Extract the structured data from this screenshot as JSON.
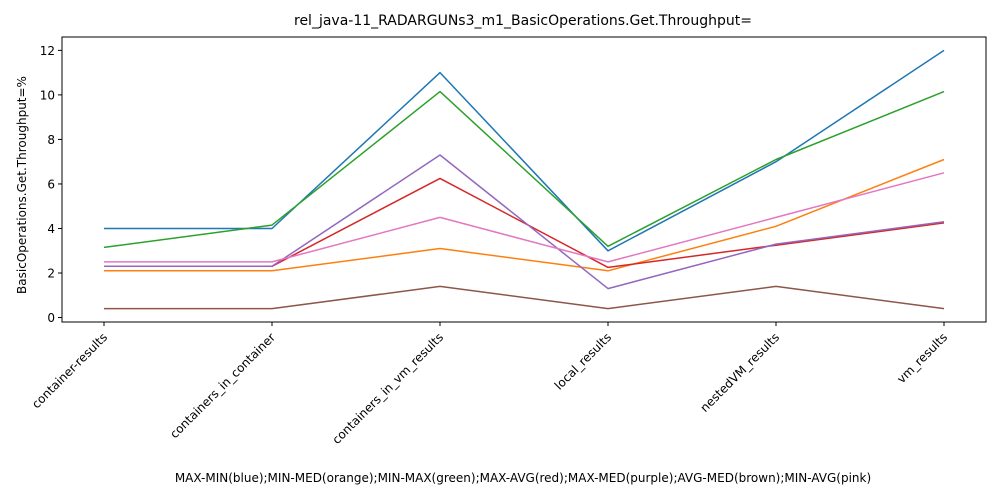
{
  "chart_data": {
    "type": "line",
    "title": "rel_java-11_RADARGUNs3_m1_BasicOperations.Get.Throughput=",
    "xlabel": "MAX-MIN(blue);MIN-MED(orange);MIN-MAX(green);MAX-AVG(red);MAX-MED(purple);AVG-MED(brown);MIN-AVG(pink)",
    "ylabel": "BasicOperations.Get.Throughput=%",
    "categories": [
      "container-results",
      "containers_in_container",
      "containers_in_vm_results",
      "local_results",
      "nestedVM_results",
      "vm_results"
    ],
    "ylim": [
      -0.2,
      12.6
    ],
    "yticks": [
      0,
      2,
      4,
      6,
      8,
      10,
      12
    ],
    "grid": false,
    "legend": "none",
    "series": [
      {
        "color": "#1f77b4",
        "values": [
          4.0,
          4.0,
          11.0,
          3.0,
          7.0,
          12.0
        ]
      },
      {
        "color": "#ff7f0e",
        "values": [
          2.1,
          2.1,
          3.1,
          2.1,
          4.1,
          7.1
        ]
      },
      {
        "color": "#2ca02c",
        "values": [
          3.15,
          4.15,
          10.15,
          3.2,
          7.1,
          10.15
        ]
      },
      {
        "color": "#d62728",
        "values": [
          2.3,
          2.3,
          6.25,
          2.25,
          3.25,
          4.25
        ]
      },
      {
        "color": "#9467bd",
        "values": [
          2.3,
          2.3,
          7.3,
          1.3,
          3.3,
          4.3
        ]
      },
      {
        "color": "#8c564b",
        "values": [
          0.4,
          0.4,
          1.4,
          0.4,
          1.4,
          0.4
        ]
      },
      {
        "color": "#e377c2",
        "values": [
          2.5,
          2.5,
          4.5,
          2.5,
          4.5,
          6.5
        ]
      }
    ]
  }
}
